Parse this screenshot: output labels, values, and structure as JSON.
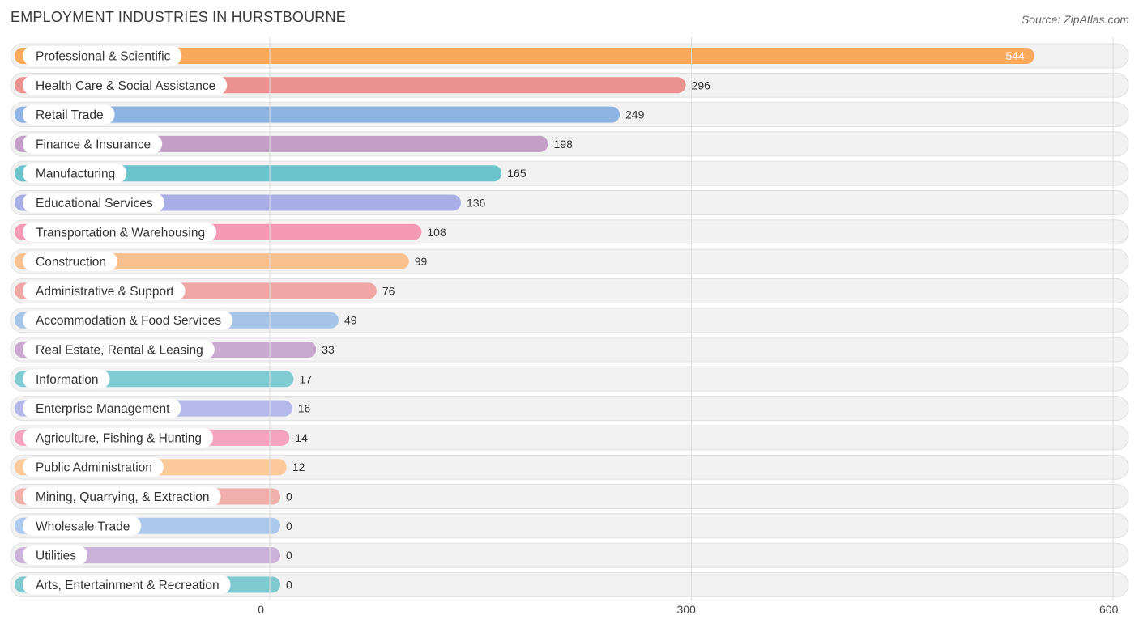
{
  "title": "EMPLOYMENT INDUSTRIES IN HURSTBOURNE",
  "source": "Source: ZipAtlas.com",
  "chart_data": {
    "type": "bar",
    "orientation": "horizontal",
    "title": "EMPLOYMENT INDUSTRIES IN HURSTBOURNE",
    "xlim": [
      0,
      600
    ],
    "xticks": [
      0,
      300,
      600
    ],
    "grid": true,
    "categories": [
      "Professional & Scientific",
      "Health Care & Social Assistance",
      "Retail Trade",
      "Finance & Insurance",
      "Manufacturing",
      "Educational Services",
      "Transportation & Warehousing",
      "Construction",
      "Administrative & Support",
      "Accommodation & Food Services",
      "Real Estate, Rental & Leasing",
      "Information",
      "Enterprise Management",
      "Agriculture, Fishing & Hunting",
      "Public Administration",
      "Mining, Quarrying, & Extraction",
      "Wholesale Trade",
      "Utilities",
      "Arts, Entertainment & Recreation"
    ],
    "values": [
      544,
      296,
      249,
      198,
      165,
      136,
      108,
      99,
      76,
      49,
      33,
      17,
      16,
      14,
      12,
      0,
      0,
      0,
      0
    ],
    "colors": [
      "#f9a95c",
      "#ea928f",
      "#8db4e3",
      "#c39fc7",
      "#6bc3cb",
      "#a9afe6",
      "#f59ab5",
      "#fac18f",
      "#f0a6a4",
      "#a7c5e9",
      "#c9a9cf",
      "#7fccd3",
      "#b5b8ea",
      "#f5a3bf",
      "#fbc99a",
      "#f2afab",
      "#adc9ee",
      "#cbb2d8",
      "#7fcad1"
    ]
  }
}
